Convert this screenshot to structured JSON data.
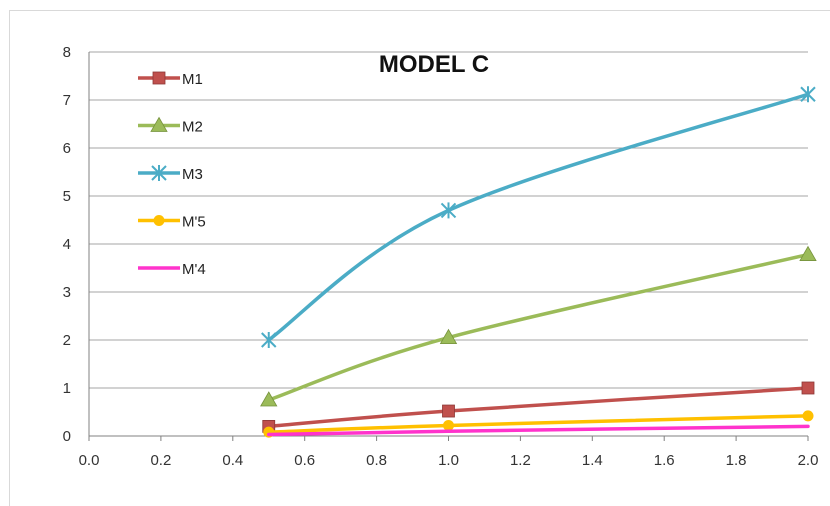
{
  "chart_data": {
    "type": "line",
    "title": "MODEL C",
    "xlabel": "",
    "ylabel": "",
    "xlim": [
      0.0,
      2.0
    ],
    "ylim": [
      0,
      8
    ],
    "xticks": [
      "0.0",
      "0.2",
      "0.4",
      "0.6",
      "0.8",
      "1.0",
      "1.2",
      "1.4",
      "1.6",
      "1.8",
      "2.0"
    ],
    "yticks": [
      "0",
      "1",
      "2",
      "3",
      "4",
      "5",
      "6",
      "7",
      "8"
    ],
    "grid": "horizontal",
    "legend_position": "top-left",
    "x": [
      0.5,
      1.0,
      2.0
    ],
    "series": [
      {
        "name": "M1",
        "values": [
          0.2,
          0.52,
          1.0
        ],
        "color": "#c0504d",
        "marker": "square"
      },
      {
        "name": "M2",
        "values": [
          0.75,
          2.05,
          3.78
        ],
        "color": "#9bbb59",
        "marker": "triangle"
      },
      {
        "name": "M3",
        "values": [
          2.0,
          4.7,
          7.12
        ],
        "color": "#4bacc6",
        "marker": "star"
      },
      {
        "name": "M'5",
        "values": [
          0.08,
          0.22,
          0.42
        ],
        "color": "#ffc000",
        "marker": "circle"
      },
      {
        "name": "M'4",
        "values": [
          0.03,
          0.1,
          0.2
        ],
        "color": "#ff33cc",
        "marker": "none"
      }
    ]
  }
}
